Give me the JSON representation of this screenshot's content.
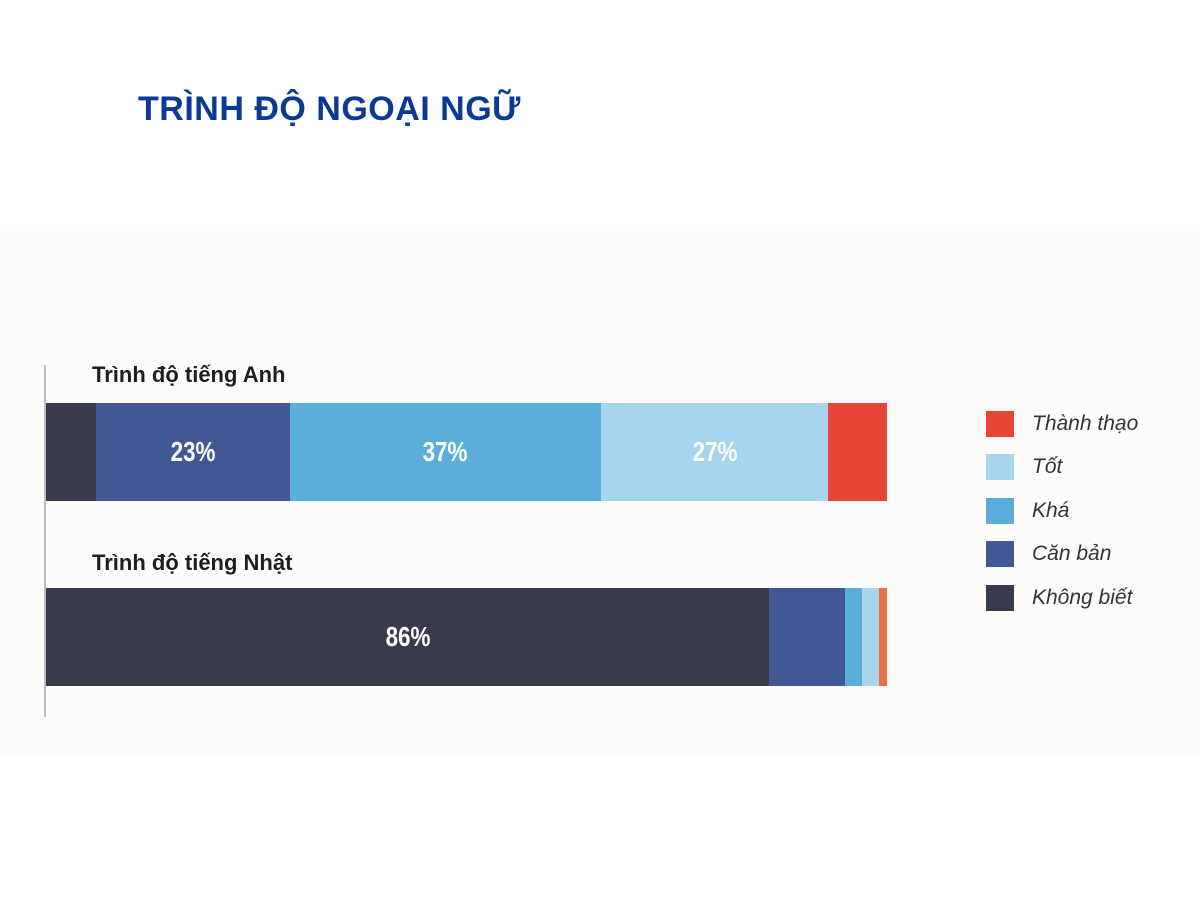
{
  "title": "TRÌNH ĐỘ NGOẠI NGỮ",
  "chart_data": {
    "type": "bar",
    "orientation": "horizontal-stacked-100",
    "title": "TRÌNH ĐỘ NGOẠI NGỮ",
    "xlim": [
      0,
      100
    ],
    "grid": false,
    "legend_position": "right",
    "legend": [
      {
        "name": "Thành thạo",
        "color": "#e8443a"
      },
      {
        "name": "Tốt",
        "color": "#a6d5ed"
      },
      {
        "name": "Khá",
        "color": "#5aafda"
      },
      {
        "name": "Căn bản",
        "color": "#425893"
      },
      {
        "name": "Không biết",
        "color": "#3a3a4f"
      }
    ],
    "stack_order": [
      "Không biết",
      "Căn bản",
      "Khá",
      "Tốt",
      "Thành thạo"
    ],
    "categories": [
      "Trình độ tiếng Anh",
      "Trình độ tiếng Nhật"
    ],
    "rows": [
      {
        "label": "Trình độ tiếng Anh",
        "values": [
          6,
          23,
          37,
          27,
          7
        ],
        "data_labels": [
          "",
          "23%",
          "37%",
          "27%",
          ""
        ]
      },
      {
        "label": "Trình độ tiếng Nhật",
        "values": [
          86,
          9,
          2,
          2,
          1
        ],
        "data_labels": [
          "86%",
          "",
          "",
          "",
          ""
        ],
        "last_segment_color": "#e8704a"
      }
    ]
  }
}
